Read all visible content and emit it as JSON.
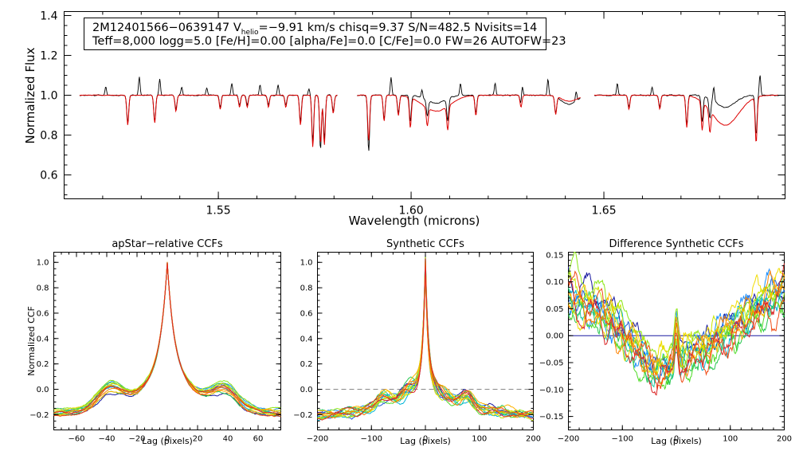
{
  "chart_data": [
    {
      "type": "line",
      "panel": "spectrum",
      "xlabel": "Wavelength (microns)",
      "ylabel": "Normalized Flux",
      "xlim": [
        1.51,
        1.697
      ],
      "ylim": [
        0.48,
        1.42
      ],
      "xticks": [
        1.55,
        1.6,
        1.65
      ],
      "xtick_labels": [
        "1.55",
        "1.60",
        "1.65"
      ],
      "yticks": [
        0.6,
        0.8,
        1.0,
        1.2,
        1.4
      ],
      "ytick_labels": [
        "0.6",
        "0.8",
        "1.0",
        "1.2",
        "1.4"
      ],
      "annotation": {
        "line1_id": "2M12401566−0639147",
        "line1_v": "V",
        "line1_v_sub": "helio",
        "line1_rest": "=−9.91 km/s  chisq=9.37  S/N=482.5  Nvisits=14",
        "line2": "Teff=8,000 logg=5.0 [Fe/H]=0.00 [alpha/Fe]=0.0 [C/Fe]=0.0 FW=26 AUTOFW=23"
      },
      "segments": [
        [
          1.514,
          1.581
        ],
        [
          1.586,
          1.644
        ],
        [
          1.6475,
          1.6955
        ]
      ],
      "series": [
        {
          "name": "observed spectrum",
          "color": "#000000",
          "lines": [
            [
              1.5265,
              -0.14
            ],
            [
              1.5335,
              -0.13
            ],
            [
              1.539,
              -0.07
            ],
            [
              1.5505,
              -0.06
            ],
            [
              1.5555,
              -0.05
            ],
            [
              1.5575,
              -0.05
            ],
            [
              1.563,
              -0.05
            ],
            [
              1.5675,
              -0.05
            ],
            [
              1.5713,
              -0.13
            ],
            [
              1.5745,
              -0.23
            ],
            [
              1.5765,
              -0.27
            ],
            [
              1.5775,
              -0.22
            ],
            [
              1.5798,
              -0.08
            ],
            [
              1.589,
              -0.28
            ],
            [
              1.593,
              -0.12
            ],
            [
              1.5967,
              -0.09
            ],
            [
              1.5998,
              -0.13
            ],
            [
              1.6042,
              -0.08
            ],
            [
              1.6095,
              -0.11
            ],
            [
              1.6168,
              -0.09
            ],
            [
              1.6285,
              -0.05
            ],
            [
              1.6375,
              -0.08
            ],
            [
              1.6565,
              -0.06
            ],
            [
              1.6645,
              -0.06
            ],
            [
              1.6715,
              -0.15
            ],
            [
              1.6755,
              -0.13
            ],
            [
              1.6775,
              -0.1
            ],
            [
              1.6895,
              -0.2
            ]
          ],
          "dips": [
            [
              1.6065,
              0.04,
              0.0025
            ],
            [
              1.641,
              0.045,
              0.002
            ],
            [
              1.6815,
              0.06,
              0.0025
            ]
          ],
          "spikes": [
            [
              1.5208,
              0.04
            ],
            [
              1.5295,
              0.09
            ],
            [
              1.5348,
              0.08
            ],
            [
              1.5405,
              0.04
            ],
            [
              1.547,
              0.04
            ],
            [
              1.5535,
              0.06
            ],
            [
              1.5608,
              0.05
            ],
            [
              1.5655,
              0.05
            ],
            [
              1.5735,
              0.03
            ],
            [
              1.5822,
              0.06
            ],
            [
              1.5948,
              0.09
            ],
            [
              1.6028,
              0.04
            ],
            [
              1.6128,
              0.06
            ],
            [
              1.6218,
              0.06
            ],
            [
              1.6288,
              0.06
            ],
            [
              1.6355,
              0.08
            ],
            [
              1.6428,
              0.05
            ],
            [
              1.6535,
              0.06
            ],
            [
              1.6625,
              0.04
            ],
            [
              1.6785,
              0.07
            ],
            [
              1.6905,
              0.1
            ]
          ],
          "noise": 0.004
        },
        {
          "name": "synthetic model",
          "color": "#dd0000",
          "lines": [
            [
              1.5265,
              -0.15
            ],
            [
              1.5335,
              -0.14
            ],
            [
              1.539,
              -0.08
            ],
            [
              1.5505,
              -0.07
            ],
            [
              1.5555,
              -0.06
            ],
            [
              1.5575,
              -0.06
            ],
            [
              1.563,
              -0.06
            ],
            [
              1.5675,
              -0.06
            ],
            [
              1.5713,
              -0.15
            ],
            [
              1.5745,
              -0.26
            ],
            [
              1.5765,
              -0.24
            ],
            [
              1.5775,
              -0.25
            ],
            [
              1.5798,
              -0.09
            ],
            [
              1.589,
              -0.23
            ],
            [
              1.593,
              -0.13
            ],
            [
              1.5967,
              -0.1
            ],
            [
              1.5998,
              -0.15
            ],
            [
              1.6042,
              -0.09
            ],
            [
              1.6095,
              -0.12
            ],
            [
              1.6168,
              -0.1
            ],
            [
              1.6285,
              -0.06
            ],
            [
              1.6375,
              -0.09
            ],
            [
              1.6565,
              -0.07
            ],
            [
              1.6645,
              -0.07
            ],
            [
              1.6715,
              -0.16
            ],
            [
              1.6755,
              -0.14
            ],
            [
              1.6775,
              -0.11
            ],
            [
              1.6895,
              -0.23
            ]
          ],
          "dips": [
            [
              1.6065,
              0.08,
              0.0035
            ],
            [
              1.641,
              0.03,
              0.002
            ],
            [
              1.6815,
              0.15,
              0.0035
            ]
          ],
          "spikes": [],
          "noise": 0.002
        }
      ]
    },
    {
      "type": "line",
      "panel": "apstar_ccf",
      "title": "apStar−relative CCFs",
      "xlabel": "Lag (pixels)",
      "ylabel": "Normalized CCF",
      "xlim": [
        -75,
        75
      ],
      "ylim": [
        -0.32,
        1.08
      ],
      "xticks": [
        -60,
        -40,
        -20,
        0,
        20,
        40,
        60
      ],
      "xtick_labels": [
        "−60",
        "−40",
        "−20",
        "0",
        "20",
        "40",
        "60"
      ],
      "yticks": [
        -0.2,
        0.0,
        0.2,
        0.4,
        0.6,
        0.8,
        1.0
      ],
      "ytick_labels": [
        "−0.2",
        "0.0",
        "0.2",
        "0.4",
        "0.6",
        "0.8",
        "1.0"
      ],
      "n_visits": 14,
      "shape": {
        "peak": 1.0,
        "core_width": 4.5,
        "wing_amp": 0.42,
        "wing_width": 22,
        "bump_pos": 38,
        "bump_amp": 0.14,
        "bump_width": 8,
        "edge_level": -0.2
      }
    },
    {
      "type": "line",
      "panel": "synthetic_ccf",
      "title": "Synthetic CCFs",
      "xlabel": "Lag (pixels)",
      "xlim": [
        -200,
        200
      ],
      "ylim": [
        -0.32,
        1.08
      ],
      "xticks": [
        -200,
        -100,
        0,
        100,
        200
      ],
      "xtick_labels": [
        "−200",
        "−100",
        "0",
        "100",
        "200"
      ],
      "yticks": [
        -0.2,
        0.0,
        0.2,
        0.4,
        0.6,
        0.8,
        1.0
      ],
      "ytick_labels": [
        "−0.2",
        "0.0",
        "0.2",
        "0.4",
        "0.6",
        "0.8",
        "1.0"
      ],
      "zero_line": 0.0,
      "n_visits": 14,
      "shape": {
        "peak": 1.0,
        "core_width": 5,
        "wing_amp": 0.3,
        "wing_width": 70,
        "bump_pos": 78,
        "bump_amp": 0.07,
        "bump_width": 10,
        "edge_level": -0.22
      }
    },
    {
      "type": "line",
      "panel": "difference_ccf",
      "title": "Difference Synthetic CCFs",
      "xlabel": "Lag (pixels)",
      "xlim": [
        -200,
        200
      ],
      "ylim": [
        -0.175,
        0.155
      ],
      "xticks": [
        -200,
        -100,
        0,
        100,
        200
      ],
      "xtick_labels": [
        "−200",
        "−100",
        "0",
        "100",
        "200"
      ],
      "yticks": [
        -0.15,
        -0.1,
        -0.05,
        0.0,
        0.05,
        0.1,
        0.15
      ],
      "ytick_labels": [
        "−0.15",
        "−0.10",
        "−0.05",
        "0.00",
        "0.05",
        "0.10",
        "0.15"
      ],
      "zero_line": 0.0,
      "n_visits": 14
    }
  ],
  "visit_colors": [
    "#1a1aa0",
    "#1e5ad8",
    "#1e90ff",
    "#00b4d8",
    "#1ec8a0",
    "#28c850",
    "#50dc28",
    "#8ce614",
    "#c8e600",
    "#f0dc00",
    "#ffb400",
    "#ff8200",
    "#f04b14",
    "#dc2828"
  ],
  "colors": {
    "frame": "#000000",
    "zero_line_synthetic": "#888888",
    "zero_line_difference": "#1a1aa0"
  }
}
